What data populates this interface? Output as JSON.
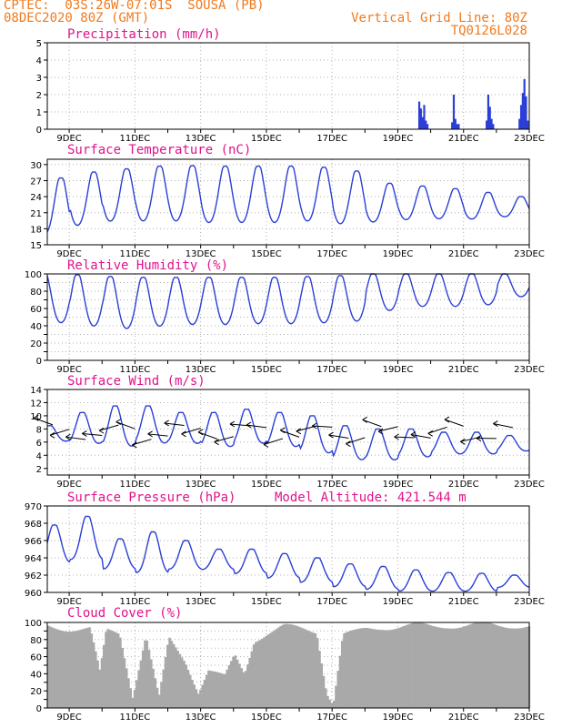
{
  "header": {
    "line1": "CPTEC:  03S:26W-07:01S  SOUSA (PB)",
    "line2": "08DEC2020 80Z (GMT)",
    "right1": "Vertical Grid Line: 80Z",
    "right2": "TQ0126L028"
  },
  "colors": {
    "header": "#f07a1e",
    "title": "#e0138c",
    "line": "#2b3fd6",
    "cloud": "#a9a9a9",
    "grid": "#b0b0b0"
  },
  "x_axis": {
    "labels": [
      "9DEC",
      "11DEC",
      "13DEC",
      "15DEC",
      "17DEC",
      "19DEC",
      "21DEC",
      "23DEC"
    ]
  },
  "chart_data": [
    {
      "type": "bar",
      "title": "Precipitation (mm/h)",
      "ylim": [
        0,
        5
      ],
      "yticks": [
        0,
        1,
        2,
        3,
        4,
        5
      ],
      "x_range": [
        8.333,
        23
      ],
      "grid": true,
      "series": [
        {
          "values": [
            [
              19.65,
              1.6
            ],
            [
              19.7,
              1.2
            ],
            [
              19.75,
              0.7
            ],
            [
              19.8,
              1.4
            ],
            [
              19.85,
              0.5
            ],
            [
              19.9,
              0.3
            ],
            [
              20.65,
              0.4
            ],
            [
              20.7,
              2.0
            ],
            [
              20.75,
              0.6
            ],
            [
              20.8,
              0.3
            ],
            [
              20.85,
              0.3
            ],
            [
              21.7,
              0.5
            ],
            [
              21.75,
              2.0
            ],
            [
              21.8,
              1.3
            ],
            [
              21.85,
              0.6
            ],
            [
              21.9,
              0.3
            ],
            [
              22.7,
              0.6
            ],
            [
              22.75,
              1.4
            ],
            [
              22.8,
              2.1
            ],
            [
              22.85,
              2.9
            ],
            [
              22.9,
              1.9
            ],
            [
              22.95,
              0.5
            ]
          ]
        }
      ]
    },
    {
      "type": "line",
      "title": "Surface Temperature (nC)",
      "ylim": [
        15,
        31
      ],
      "yticks": [
        15,
        18,
        21,
        24,
        27,
        30
      ],
      "x_range": [
        8.333,
        23
      ],
      "grid": true,
      "daily": {
        "max": [
          27.5,
          28.6,
          29.2,
          29.7,
          29.8,
          29.7,
          29.7,
          29.7,
          29.5,
          28.8,
          26.5,
          26.0,
          25.5,
          24.8,
          24.0
        ],
        "min": [
          16.3,
          18.0,
          18.8,
          18.8,
          18.8,
          18.5,
          18.5,
          18.5,
          18.8,
          18.3,
          18.8,
          19.3,
          19.5,
          19.5,
          20.0
        ]
      }
    },
    {
      "type": "line",
      "title": "Relative Humidity (%)",
      "ylim": [
        0,
        100
      ],
      "yticks": [
        0,
        10,
        20,
        30,
        40,
        50,
        60,
        70,
        80,
        90,
        100
      ],
      "ytick_labels_shown": [
        0,
        20,
        40,
        60,
        80,
        100
      ],
      "x_range": [
        8.333,
        23
      ],
      "grid": true,
      "daily": {
        "max": [
          100,
          99,
          97,
          96,
          96,
          96,
          96,
          96,
          97,
          98,
          100,
          100,
          100,
          100,
          100
        ],
        "min": [
          40,
          36,
          33,
          36,
          38,
          38,
          39,
          39,
          40,
          42,
          55,
          60,
          60,
          62,
          72
        ]
      }
    },
    {
      "type": "line",
      "title": "Surface Wind (m/s)",
      "ylim": [
        1,
        14
      ],
      "yticks": [
        2,
        4,
        6,
        8,
        10,
        12,
        14
      ],
      "x_range": [
        8.333,
        23
      ],
      "grid": true,
      "daily": {
        "max": [
          8.5,
          10.5,
          11.5,
          11.5,
          10.5,
          10.5,
          11.0,
          10.5,
          10.0,
          8.5,
          8.0,
          8.0,
          7.5,
          7.5,
          7.0
        ],
        "min": [
          6.0,
          5.5,
          5.0,
          5.5,
          5.5,
          5.0,
          5.5,
          5.0,
          4.0,
          3.0,
          3.0,
          3.5,
          4.0,
          4.0,
          4.5
        ]
      }
    },
    {
      "type": "line",
      "title": "Surface Pressure (hPa)",
      "annotation": "Model Altitude: 421.544 m",
      "ylim": [
        960,
        970
      ],
      "yticks": [
        960,
        962,
        964,
        966,
        968,
        970
      ],
      "x_range": [
        8.333,
        23
      ],
      "grid": true,
      "daily": {
        "max": [
          967.8,
          968.8,
          966.2,
          967.0,
          966.0,
          965.0,
          965.0,
          964.5,
          964.0,
          963.3,
          963.0,
          962.6,
          962.3,
          962.2,
          962.0
        ],
        "min": [
          963.2,
          963.5,
          962.5,
          962.0,
          962.5,
          962.5,
          962.0,
          961.5,
          961.0,
          960.5,
          960.2,
          960.0,
          960.0,
          960.0,
          960.5
        ]
      }
    },
    {
      "type": "area",
      "title": "Cloud Cover (%)",
      "ylim": [
        0,
        100
      ],
      "yticks": [
        0,
        10,
        20,
        30,
        40,
        50,
        60,
        70,
        80,
        90,
        100
      ],
      "ytick_labels_shown": [
        0,
        20,
        40,
        60,
        80,
        100
      ],
      "x_range": [
        8.333,
        23
      ],
      "grid": true,
      "profile": [
        [
          8.333,
          95
        ],
        [
          9.0,
          93
        ],
        [
          9.6,
          92
        ],
        [
          9.9,
          40
        ],
        [
          10.1,
          90
        ],
        [
          10.5,
          88
        ],
        [
          10.9,
          15
        ],
        [
          11.3,
          85
        ],
        [
          11.7,
          10
        ],
        [
          12.0,
          80
        ],
        [
          12.5,
          55
        ],
        [
          12.9,
          20
        ],
        [
          13.2,
          45
        ],
        [
          13.7,
          35
        ],
        [
          14.0,
          60
        ],
        [
          14.3,
          40
        ],
        [
          14.6,
          80
        ],
        [
          15.0,
          88
        ],
        [
          15.5,
          95
        ],
        [
          16.0,
          92
        ],
        [
          16.5,
          90
        ],
        [
          16.8,
          20
        ],
        [
          17.0,
          5
        ],
        [
          17.3,
          85
        ],
        [
          17.7,
          88
        ],
        [
          18.0,
          92
        ],
        [
          18.5,
          95
        ],
        [
          19.0,
          95
        ],
        [
          19.5,
          96
        ],
        [
          20.0,
          95
        ],
        [
          20.5,
          97
        ],
        [
          21.0,
          96
        ],
        [
          21.5,
          97
        ],
        [
          22.0,
          96
        ],
        [
          22.5,
          97
        ],
        [
          23.0,
          96
        ]
      ]
    }
  ]
}
